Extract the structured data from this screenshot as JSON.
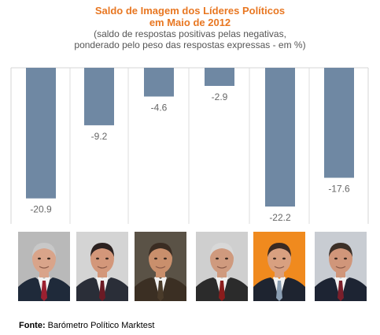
{
  "chart_data": {
    "type": "bar",
    "title_line1": "Saldo de Imagem dos Líderes Políticos",
    "title_line2": "em Maio de 2012",
    "subtitle_line1": "(saldo de respostas positivas pelas negativas,",
    "subtitle_line2": "ponderado pelo peso das respostas expressas - em %)",
    "values": [
      -20.9,
      -9.2,
      -4.6,
      -2.9,
      -22.2,
      -17.6
    ],
    "labels": [
      "-20.9",
      "-9.2",
      "-4.6",
      "-2.9",
      "-22.2",
      "-17.6"
    ],
    "ylim": [
      -25,
      0
    ],
    "bar_color": "#6f88a3",
    "grid": false
  },
  "photos": [
    {
      "icon": "portrait-1-icon",
      "bg": "#b9b9b9",
      "suit": "#1f2a3a",
      "tie": "#9b2030",
      "skin": "#d9a48a",
      "hair": "#c8c8c8"
    },
    {
      "icon": "portrait-2-icon",
      "bg": "#d4d4d4",
      "suit": "#2a2e38",
      "tie": "#6b1b25",
      "skin": "#d3977a",
      "hair": "#2b2120"
    },
    {
      "icon": "portrait-3-icon",
      "bg": "#5a5246",
      "suit": "#3b2f23",
      "tie": "#4a3b2a",
      "skin": "#c98f6c",
      "hair": "#3a2c22"
    },
    {
      "icon": "portrait-4-icon",
      "bg": "#cfcfcf",
      "suit": "#2b2b2b",
      "tie": "#8a1c1c",
      "skin": "#cf9a7e",
      "hair": "#d8d8d8"
    },
    {
      "icon": "portrait-5-icon",
      "bg": "#f08a1e",
      "suit": "#1e2430",
      "tie": "#8b9fb4",
      "skin": "#d8a080",
      "hair": "#3a2a22"
    },
    {
      "icon": "portrait-6-icon",
      "bg": "#c8ccd2",
      "suit": "#1d2433",
      "tie": "#7a1f2b",
      "skin": "#d0967a",
      "hair": "#3c3028"
    }
  ],
  "source": {
    "label": "Fonte:",
    "text": "Barómetro Político Marktest"
  }
}
